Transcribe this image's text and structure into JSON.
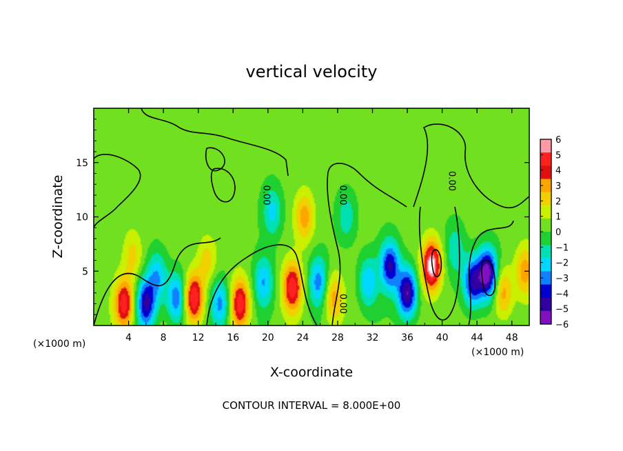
{
  "chart_data": {
    "type": "heatmap",
    "title": "vertical velocity",
    "xlabel": "X-coordinate",
    "ylabel": "Z-coordinate",
    "x_unit_note": "(×1000 m)",
    "x_unit_note_right": "(×1000 m)",
    "footer": "CONTOUR INTERVAL = 8.000E+00",
    "xlim": [
      0,
      50
    ],
    "ylim": [
      0,
      20
    ],
    "x_ticks": [
      4,
      8,
      12,
      16,
      20,
      24,
      28,
      32,
      36,
      40,
      44,
      48
    ],
    "x_tick_labels": [
      "4",
      "8",
      "12",
      "16",
      "20",
      "24",
      "28",
      "32",
      "36",
      "40",
      "44",
      "48"
    ],
    "y_ticks": [
      5,
      10,
      15
    ],
    "y_tick_labels": [
      "5",
      "10",
      "15"
    ],
    "colorbar": {
      "ticks": [
        6,
        5,
        4,
        3,
        2,
        1,
        0,
        -1,
        -2,
        -3,
        -4,
        -5,
        -6
      ],
      "tick_labels": [
        "6",
        "5",
        "4",
        "3",
        "2",
        "1",
        "0",
        "−1",
        "−2",
        "−3",
        "−4",
        "−5",
        "−6"
      ],
      "colors": [
        "#ff9aa8",
        "#ff2020",
        "#e01010",
        "#ffa500",
        "#f0d000",
        "#c8f000",
        "#70e020",
        "#20d030",
        "#00e0b0",
        "#00d8ff",
        "#1080ff",
        "#0000d0",
        "#3000a0",
        "#8010c0"
      ]
    },
    "contour_labels": [
      {
        "text": "0.00",
        "x": 19.5,
        "y": 12
      },
      {
        "text": "0.00",
        "x": 28.3,
        "y": 12
      },
      {
        "text": "0.00",
        "x": 40.8,
        "y": 13.3
      },
      {
        "text": "0.00",
        "x": 28.3,
        "y": 2
      }
    ],
    "features": [
      {
        "x": 3.5,
        "z": 2.0,
        "value": 5.0
      },
      {
        "x": 4.5,
        "z": 6.5,
        "value": 2.0
      },
      {
        "x": 6.0,
        "z": 2.0,
        "value": -5.0
      },
      {
        "x": 7.3,
        "z": 4.5,
        "value": -3.0
      },
      {
        "x": 9.5,
        "z": 2.5,
        "value": -4.0
      },
      {
        "x": 11.5,
        "z": 2.5,
        "value": 5.5
      },
      {
        "x": 13.0,
        "z": 6.0,
        "value": 2.0
      },
      {
        "x": 14.5,
        "z": 2.0,
        "value": -3.5
      },
      {
        "x": 16.8,
        "z": 2.0,
        "value": 5.0
      },
      {
        "x": 19.5,
        "z": 4.0,
        "value": -3.0
      },
      {
        "x": 20.5,
        "z": 10.5,
        "value": -2.5
      },
      {
        "x": 22.8,
        "z": 3.5,
        "value": 5.0
      },
      {
        "x": 24.2,
        "z": 10.0,
        "value": 3.0
      },
      {
        "x": 25.8,
        "z": 4.0,
        "value": -3.5
      },
      {
        "x": 27.5,
        "z": 2.5,
        "value": 3.0
      },
      {
        "x": 29.0,
        "z": 10.0,
        "value": -2.0
      },
      {
        "x": 31.5,
        "z": 4.0,
        "value": -3.0
      },
      {
        "x": 34.0,
        "z": 5.5,
        "value": -5.0
      },
      {
        "x": 36.0,
        "z": 3.0,
        "value": -6.0
      },
      {
        "x": 38.8,
        "z": 5.5,
        "value": 6.5
      },
      {
        "x": 41.5,
        "z": 7.0,
        "value": -2.0
      },
      {
        "x": 43.5,
        "z": 4.0,
        "value": -5.0
      },
      {
        "x": 45.2,
        "z": 4.8,
        "value": -6.5
      },
      {
        "x": 47.0,
        "z": 3.0,
        "value": 3.0
      },
      {
        "x": 49.5,
        "z": 5.0,
        "value": 3.0
      }
    ]
  }
}
